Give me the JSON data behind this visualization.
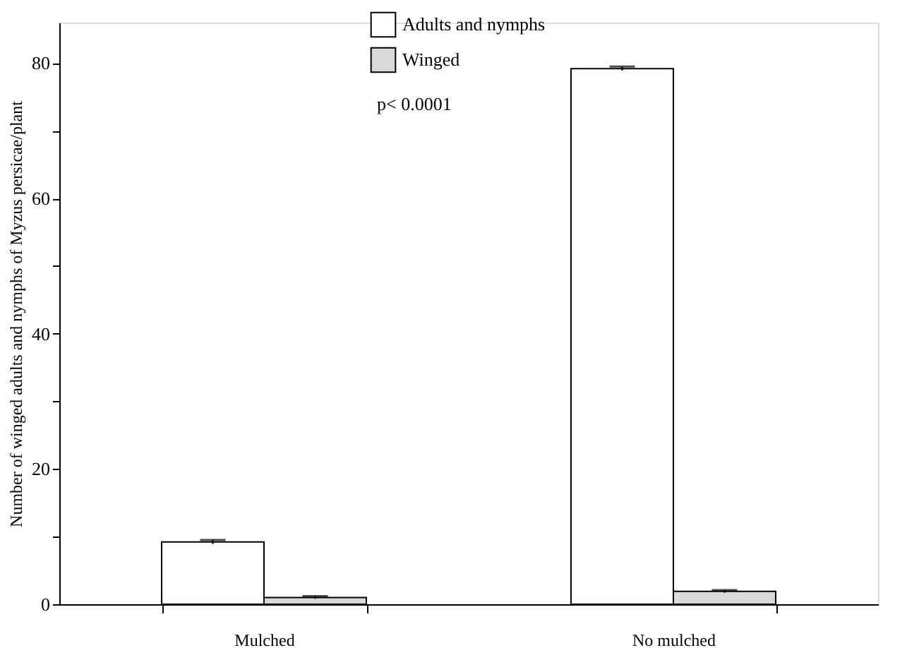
{
  "chart_data": {
    "type": "bar",
    "ylabel": "Number of winged adults and nymphs of Myzus persicae/plant",
    "categories": [
      "Mulched",
      "No mulched"
    ],
    "series": [
      {
        "name": "Adults and nymphs",
        "color": "#ffffff",
        "values": [
          9.2,
          79.2
        ],
        "errors": [
          0.3,
          0.3
        ]
      },
      {
        "name": "Winged",
        "color": "#d9d9d9",
        "values": [
          1.0,
          1.9
        ],
        "errors": [
          0.2,
          0.2
        ]
      }
    ],
    "ylim": [
      0,
      86
    ],
    "yticks": [
      0,
      {
        "value": 10,
        "label": null
      },
      20,
      {
        "value": 30,
        "label": null
      },
      40,
      {
        "value": 50,
        "label": null
      },
      60,
      {
        "value": 70,
        "label": null
      },
      80
    ],
    "annotations": [
      "p< 0.0001"
    ],
    "legend": "top",
    "grid": false
  }
}
